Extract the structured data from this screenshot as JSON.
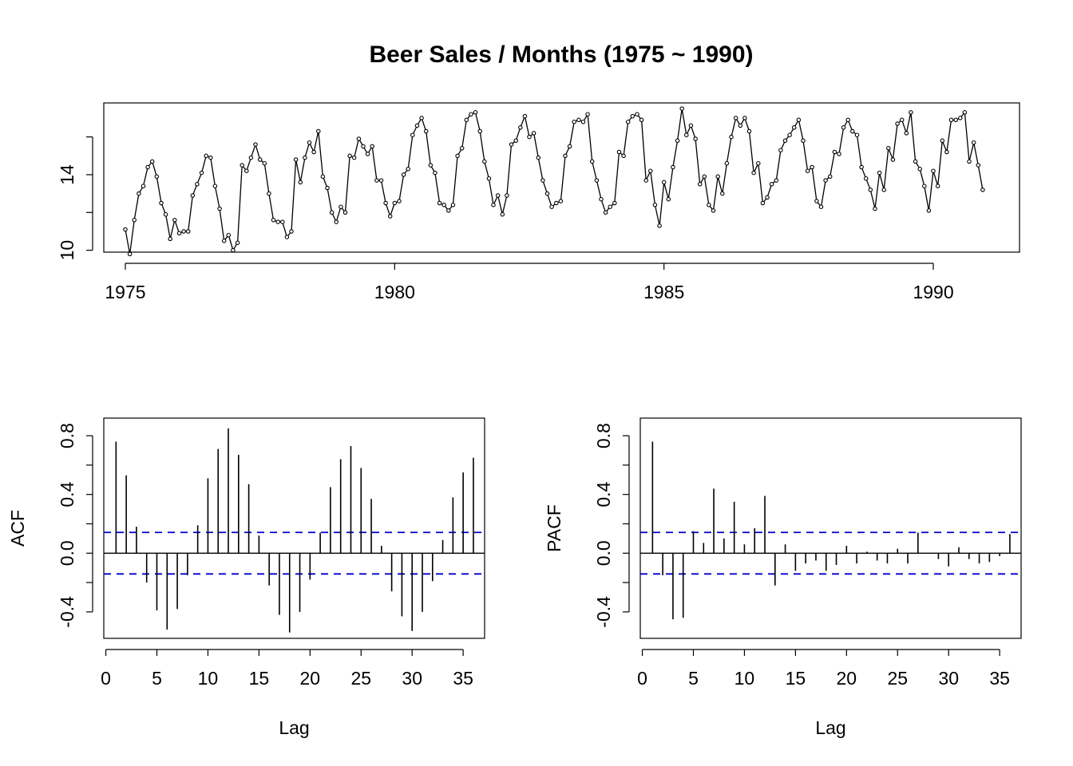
{
  "chart_data": [
    {
      "type": "line",
      "title": "Beer Sales / Months (1975 ~ 1990)",
      "xlabel": "",
      "ylabel": "",
      "x_ticks": [
        1975,
        1980,
        1985,
        1990
      ],
      "y_ticks": [
        10,
        14
      ],
      "y_minor_ticks": [
        10,
        12,
        14,
        16
      ],
      "xlim": [
        1974.6,
        1991.6
      ],
      "ylim": [
        9.9,
        17.8
      ],
      "start_year": 1975,
      "frequency": 12,
      "grid": false,
      "values": [
        11.1,
        9.8,
        11.6,
        13.0,
        13.4,
        14.4,
        14.7,
        13.9,
        12.5,
        11.9,
        10.6,
        11.6,
        10.9,
        11.0,
        11.0,
        12.9,
        13.5,
        14.1,
        15.0,
        14.9,
        13.4,
        12.2,
        10.5,
        10.8,
        10.0,
        10.4,
        14.5,
        14.2,
        14.9,
        15.6,
        14.8,
        14.6,
        13.0,
        11.6,
        11.5,
        11.5,
        10.7,
        11.0,
        14.8,
        13.6,
        14.9,
        15.7,
        15.2,
        16.3,
        13.9,
        13.3,
        12.0,
        11.5,
        12.3,
        12.0,
        15.0,
        14.9,
        15.9,
        15.5,
        15.1,
        15.5,
        13.7,
        13.7,
        12.5,
        11.8,
        12.5,
        12.6,
        14.0,
        14.3,
        16.1,
        16.6,
        17.0,
        16.3,
        14.5,
        14.1,
        12.5,
        12.4,
        12.1,
        12.4,
        15.0,
        15.4,
        16.9,
        17.2,
        17.3,
        16.3,
        14.7,
        13.8,
        12.4,
        12.9,
        11.9,
        12.9,
        15.6,
        15.8,
        16.5,
        17.1,
        16.0,
        16.2,
        14.9,
        13.7,
        13.0,
        12.3,
        12.5,
        12.6,
        15.0,
        15.5,
        16.8,
        16.9,
        16.8,
        17.2,
        14.7,
        13.7,
        12.7,
        12.0,
        12.3,
        12.5,
        15.2,
        15.0,
        16.8,
        17.1,
        17.2,
        16.9,
        13.7,
        14.2,
        12.4,
        11.3,
        13.6,
        12.7,
        14.4,
        15.8,
        17.5,
        16.1,
        16.6,
        15.9,
        13.5,
        13.9,
        12.4,
        12.1,
        13.9,
        13.0,
        14.6,
        16.0,
        17.0,
        16.6,
        17.0,
        16.3,
        14.1,
        14.6,
        12.5,
        12.8,
        13.5,
        13.7,
        15.3,
        15.8,
        16.1,
        16.5,
        16.9,
        15.8,
        14.2,
        14.4,
        12.6,
        12.3,
        13.7,
        13.9,
        15.2,
        15.1,
        16.5,
        16.9,
        16.3,
        16.1,
        14.4,
        13.8,
        13.2,
        12.2,
        14.1,
        13.2,
        15.4,
        14.8,
        16.7,
        16.9,
        16.2,
        17.3,
        14.7,
        14.3,
        13.4,
        12.1,
        14.2,
        13.4,
        15.8,
        15.2,
        16.9,
        16.9,
        17.0,
        17.3,
        14.7,
        15.7,
        14.5,
        13.2
      ]
    },
    {
      "type": "bar",
      "title": "",
      "xlabel": "Lag",
      "ylabel": "ACF",
      "x_ticks": [
        0,
        5,
        10,
        15,
        20,
        25,
        30,
        35
      ],
      "y_ticks": [
        -0.4,
        0.0,
        0.4,
        0.8
      ],
      "y_minor_ticks": [
        -0.4,
        -0.2,
        0.0,
        0.2,
        0.4,
        0.6,
        0.8
      ],
      "xlim": [
        -0.2,
        37.1
      ],
      "ylim": [
        -0.58,
        0.92
      ],
      "ci": 0.1414,
      "ci_color": "#0000cc",
      "x": [
        1,
        2,
        3,
        4,
        5,
        6,
        7,
        8,
        9,
        10,
        11,
        12,
        13,
        14,
        15,
        16,
        17,
        18,
        19,
        20,
        21,
        22,
        23,
        24,
        25,
        26,
        27,
        28,
        29,
        30,
        31,
        32,
        33,
        34,
        35,
        36
      ],
      "values": [
        0.76,
        0.53,
        0.18,
        -0.2,
        -0.39,
        -0.52,
        -0.38,
        -0.15,
        0.19,
        0.51,
        0.71,
        0.85,
        0.67,
        0.47,
        0.12,
        -0.22,
        -0.42,
        -0.54,
        -0.4,
        -0.18,
        0.14,
        0.45,
        0.64,
        0.73,
        0.58,
        0.37,
        0.05,
        -0.26,
        -0.43,
        -0.53,
        -0.4,
        -0.19,
        0.09,
        0.38,
        0.55,
        0.65
      ]
    },
    {
      "type": "bar",
      "title": "",
      "xlabel": "Lag",
      "ylabel": "PACF",
      "x_ticks": [
        0,
        5,
        10,
        15,
        20,
        25,
        30,
        35
      ],
      "y_ticks": [
        -0.4,
        0.0,
        0.4,
        0.8
      ],
      "y_minor_ticks": [
        -0.4,
        -0.2,
        0.0,
        0.2,
        0.4,
        0.6,
        0.8
      ],
      "xlim": [
        -0.2,
        37.1
      ],
      "ylim": [
        -0.58,
        0.92
      ],
      "ci": 0.1414,
      "ci_color": "#0000cc",
      "x": [
        1,
        2,
        3,
        4,
        5,
        6,
        7,
        8,
        9,
        10,
        11,
        12,
        13,
        14,
        15,
        16,
        17,
        18,
        19,
        20,
        21,
        22,
        23,
        24,
        25,
        26,
        27,
        28,
        29,
        30,
        31,
        32,
        33,
        34,
        35,
        36
      ],
      "values": [
        0.76,
        -0.15,
        -0.45,
        -0.44,
        0.15,
        0.07,
        0.44,
        0.1,
        0.35,
        0.06,
        0.17,
        0.39,
        -0.22,
        0.06,
        -0.12,
        -0.07,
        -0.05,
        -0.12,
        -0.08,
        0.05,
        -0.07,
        0.01,
        -0.05,
        -0.07,
        0.03,
        -0.07,
        0.14,
        0.0,
        -0.04,
        -0.09,
        0.04,
        -0.04,
        -0.07,
        -0.06,
        -0.02,
        0.13
      ]
    }
  ]
}
